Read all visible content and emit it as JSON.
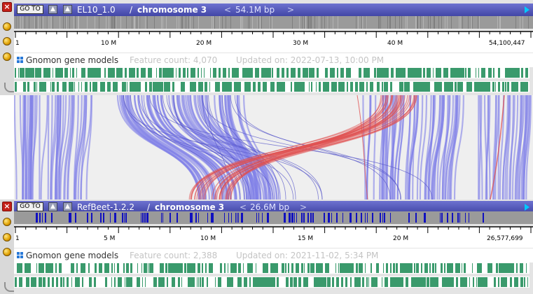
{
  "top": {
    "goto_label": "GO TO",
    "up_icon": "up-arrow-icon",
    "assembly": "EL10_1.0",
    "separator": "/",
    "chromosome": "chromosome 3",
    "prev_arrow": "<",
    "size": "54.1M bp",
    "next_arrow": ">",
    "ticks": [
      "1",
      "10 M",
      "20 M",
      "30 M",
      "40 M",
      "54,100,447"
    ],
    "track_name": "Gnomon gene models",
    "feature_count": "Feature count: 4,070",
    "updated": "Updated on: 2022-07-13, 10:00 PM"
  },
  "bottom": {
    "goto_label": "GO TO",
    "up_icon": "up-arrow-icon",
    "assembly": "RefBeet-1.2.2",
    "separator": "/",
    "chromosome": "chromosome 3",
    "prev_arrow": "<",
    "size": "26.6M bp",
    "next_arrow": ">",
    "ticks": [
      "1",
      "5 M",
      "10 M",
      "15 M",
      "20 M",
      "26,577,699"
    ],
    "track_name": "Gnomon gene models",
    "feature_count": "Feature count: 2,388",
    "updated": "Updated on: 2021-11-02, 5:34 PM"
  },
  "colors": {
    "titlebar": "#4f54b8",
    "gene_track": "#3a9a6c",
    "synteny_forward": "#8080e8",
    "synteny_inverted": "#e05050",
    "overview_mark": "#1010c0"
  }
}
